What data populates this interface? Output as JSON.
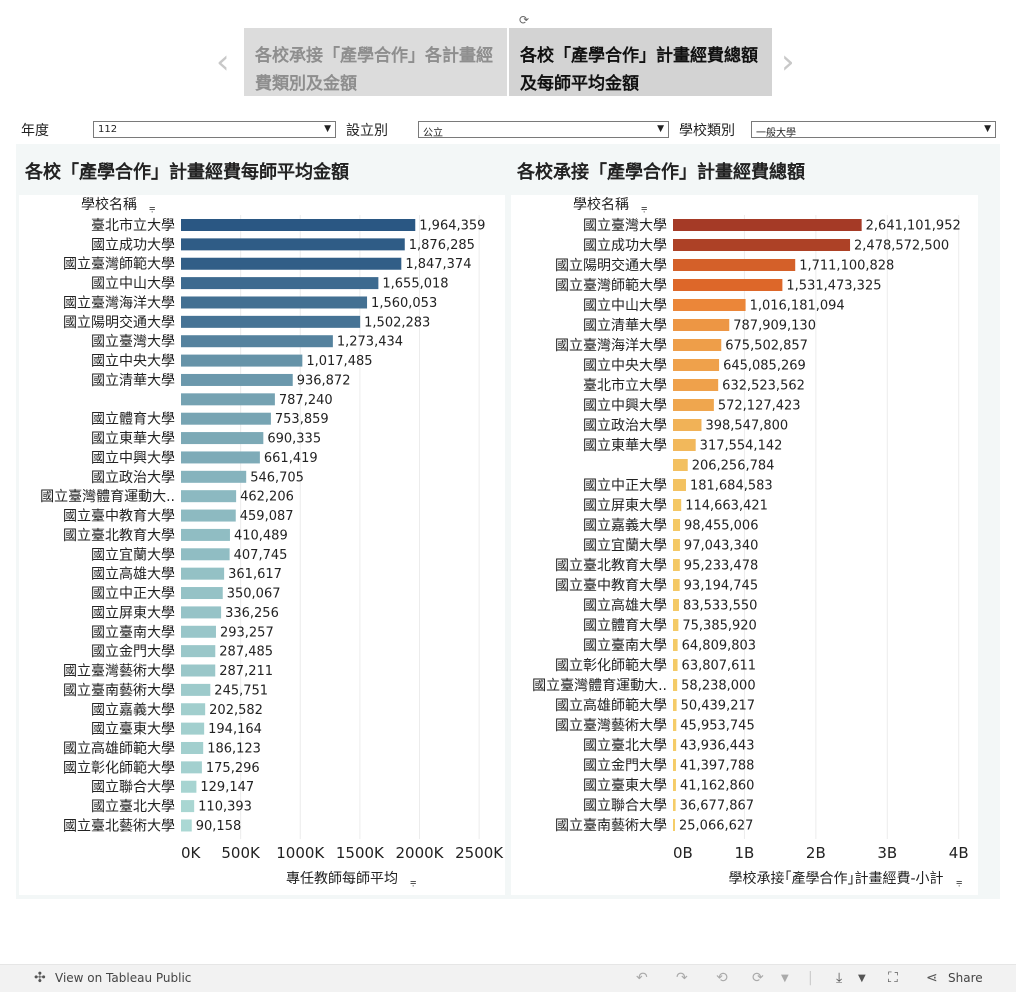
{
  "story": {
    "tabs": [
      {
        "label": "各校承接「產學合作」各計畫經費類別及金額",
        "active": false
      },
      {
        "label": "各校「產學合作」計畫經費總額及每師平均金額",
        "active": true
      }
    ]
  },
  "filters": [
    {
      "label": "年度",
      "value": "112"
    },
    {
      "label": "設立別",
      "value": "公立"
    },
    {
      "label": "學校類別",
      "value": "一般大學"
    }
  ],
  "chart_data": [
    {
      "type": "bar",
      "orientation": "horizontal",
      "title": "各校「產學合作」計畫經費每師平均金額",
      "ylabel": "學校名稱",
      "xlabel": "專任教師每師平均",
      "xlim": [
        0,
        2700000
      ],
      "ticks": [
        0,
        500000,
        1000000,
        1500000,
        2000000,
        2500000
      ],
      "tick_labels": [
        "0K",
        "500K",
        "1000K",
        "1500K",
        "2000K",
        "2500K"
      ],
      "color_low": "#b5e2da",
      "color_high": "#2a5783",
      "categories": [
        "臺北市立大學",
        "國立成功大學",
        "國立臺灣師範大學",
        "國立中山大學",
        "國立臺灣海洋大學",
        "國立陽明交通大學",
        "國立臺灣大學",
        "國立中央大學",
        "國立清華大學",
        "",
        "國立體育大學",
        "國立東華大學",
        "國立中興大學",
        "國立政治大學",
        "國立臺灣體育運動大..",
        "國立臺中教育大學",
        "國立臺北教育大學",
        "國立宜蘭大學",
        "國立高雄大學",
        "國立中正大學",
        "國立屏東大學",
        "國立臺南大學",
        "國立金門大學",
        "國立臺灣藝術大學",
        "國立臺南藝術大學",
        "國立嘉義大學",
        "國立臺東大學",
        "國立高雄師範大學",
        "國立彰化師範大學",
        "國立聯合大學",
        "國立臺北大學",
        "國立臺北藝術大學"
      ],
      "values": [
        1964359,
        1876285,
        1847374,
        1655018,
        1560053,
        1502283,
        1273434,
        1017485,
        936872,
        787240,
        753859,
        690335,
        661419,
        546705,
        462206,
        459087,
        410489,
        407745,
        361617,
        350067,
        336256,
        293257,
        287485,
        287211,
        245751,
        202582,
        194164,
        186123,
        175296,
        129147,
        110393,
        90158
      ],
      "value_labels": [
        "1,964,359",
        "1,876,285",
        "1,847,374",
        "1,655,018",
        "1,560,053",
        "1,502,283",
        "1,273,434",
        "1,017,485",
        "936,872",
        "787,240",
        "753,859",
        "690,335",
        "661,419",
        "546,705",
        "462,206",
        "459,087",
        "410,489",
        "407,745",
        "361,617",
        "350,067",
        "336,256",
        "293,257",
        "287,485",
        "287,211",
        "245,751",
        "202,582",
        "194,164",
        "186,123",
        "175,296",
        "129,147",
        "110,393",
        "90,158"
      ]
    },
    {
      "type": "bar",
      "orientation": "horizontal",
      "title": "各校承接「產學合作」計畫經費總額",
      "ylabel": "學校名稱",
      "xlabel": "學校承接｢產學合作｣計畫經費-小計",
      "xlim": [
        0,
        4200000000
      ],
      "ticks": [
        0,
        1000000000,
        2000000000,
        3000000000,
        4000000000
      ],
      "tick_labels": [
        "0B",
        "1B",
        "2B",
        "3B",
        "4B"
      ],
      "color_low": "#f5cf6a",
      "color_mid": "#e8702a",
      "color_high": "#a53a26",
      "categories": [
        "國立臺灣大學",
        "國立成功大學",
        "國立陽明交通大學",
        "國立臺灣師範大學",
        "國立中山大學",
        "國立清華大學",
        "國立臺灣海洋大學",
        "國立中央大學",
        "臺北市立大學",
        "國立中興大學",
        "國立政治大學",
        "國立東華大學",
        "",
        "國立中正大學",
        "國立屏東大學",
        "國立嘉義大學",
        "國立宜蘭大學",
        "國立臺北教育大學",
        "國立臺中教育大學",
        "國立高雄大學",
        "國立體育大學",
        "國立臺南大學",
        "國立彰化師範大學",
        "國立臺灣體育運動大..",
        "國立高雄師範大學",
        "國立臺灣藝術大學",
        "國立臺北大學",
        "國立金門大學",
        "國立臺東大學",
        "國立聯合大學",
        "國立臺南藝術大學"
      ],
      "values": [
        2641101952,
        2478572500,
        1711100828,
        1531473325,
        1016181094,
        787909130,
        675502857,
        645085269,
        632523562,
        572127423,
        398547800,
        317554142,
        206256784,
        181684583,
        114663421,
        98455006,
        97043340,
        95233478,
        93194745,
        83533550,
        75385920,
        64809803,
        63807611,
        58238000,
        50439217,
        45953745,
        43936443,
        41397788,
        41162860,
        36677867,
        25066627
      ],
      "value_labels": [
        "2,641,101,952",
        "2,478,572,500",
        "1,711,100,828",
        "1,531,473,325",
        "1,016,181,094",
        "787,909,130",
        "675,502,857",
        "645,085,269",
        "632,523,562",
        "572,127,423",
        "398,547,800",
        "317,554,142",
        "206,256,784",
        "181,684,583",
        "114,663,421",
        "98,455,006",
        "97,043,340",
        "95,233,478",
        "93,194,745",
        "83,533,550",
        "75,385,920",
        "64,809,803",
        "63,807,611",
        "58,238,000",
        "50,439,217",
        "45,953,745",
        "43,936,443",
        "41,397,788",
        "41,162,860",
        "36,677,867",
        "25,066,627"
      ]
    }
  ],
  "bottom_bar": {
    "view_label": "View on Tableau Public",
    "share_label": "Share"
  }
}
